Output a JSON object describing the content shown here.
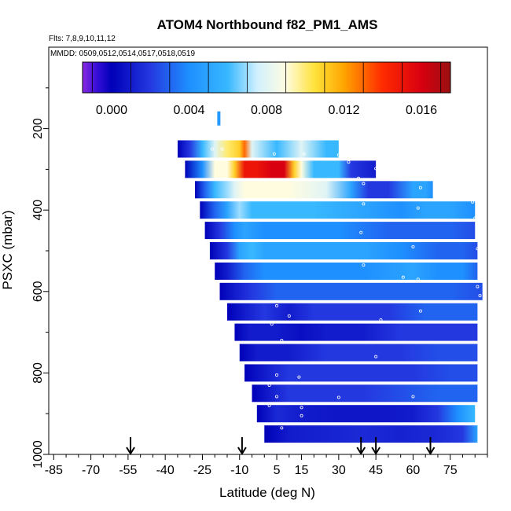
{
  "chart_data": {
    "type": "heatmap",
    "title": "ATOM4 Northbound f82_PM1_AMS",
    "subtitle_flights": "Flts: 7,8,9,10,11,12",
    "subtitle_dates": "MMDD: 0509,0512,0514,0517,0518,0519",
    "xlabel": "Latitude (deg N)",
    "ylabel": "PSXC (mbar)",
    "xlim": [
      -87,
      90
    ],
    "ylim": [
      1000,
      0
    ],
    "x_ticks": [
      -85,
      -70,
      -55,
      -40,
      -25,
      -10,
      5,
      15,
      30,
      45,
      60,
      75
    ],
    "x_tick_labels": [
      "-85",
      "-70",
      "-55",
      "-40",
      "-25",
      "-10",
      "5",
      "15",
      "30",
      "45",
      "60",
      "75"
    ],
    "y_ticks": [
      200,
      400,
      600,
      800,
      1000
    ],
    "y_tick_labels": [
      "200",
      "400",
      "600",
      "800",
      "1000"
    ],
    "colorbar": {
      "min": -0.0015,
      "max": 0.0175,
      "ticks": [
        0.0,
        0.004,
        0.008,
        0.012,
        0.016
      ],
      "tick_labels": [
        "0.000",
        "0.004",
        "0.008",
        "0.012",
        "0.016"
      ],
      "bin_step": 0.002
    },
    "arrows_latitude": [
      -54,
      -9,
      39,
      45,
      67
    ],
    "colormap_stops": [
      {
        "v": -0.0015,
        "c": "#8a2be2"
      },
      {
        "v": -0.0008,
        "c": "#3a0fd8"
      },
      {
        "v": 0.0,
        "c": "#0000b8"
      },
      {
        "v": 0.002,
        "c": "#2438e0"
      },
      {
        "v": 0.004,
        "c": "#1e90ff"
      },
      {
        "v": 0.006,
        "c": "#38b8ff"
      },
      {
        "v": 0.0075,
        "c": "#d0f0ff"
      },
      {
        "v": 0.009,
        "c": "#fffce0"
      },
      {
        "v": 0.0105,
        "c": "#ffe23a"
      },
      {
        "v": 0.012,
        "c": "#ffa500"
      },
      {
        "v": 0.014,
        "c": "#ff2a00"
      },
      {
        "v": 0.016,
        "c": "#d80010"
      },
      {
        "v": 0.0175,
        "c": "#9a1010"
      }
    ],
    "layers": [
      {
        "p": 175,
        "lat_start": -19,
        "lat_end": -18,
        "values": [
          [
            -19,
            0.0045
          ]
        ]
      },
      {
        "p": 250,
        "lat_start": -35,
        "lat_end": 30,
        "values": [
          [
            -35,
            0.0
          ],
          [
            -30,
            0.002
          ],
          [
            -25,
            0.006
          ],
          [
            -20,
            0.008
          ],
          [
            -15,
            0.01
          ],
          [
            -10,
            0.011
          ],
          [
            -8,
            0.013
          ],
          [
            -5,
            0.008
          ],
          [
            5,
            0.006
          ],
          [
            15,
            0.008
          ],
          [
            25,
            0.006
          ],
          [
            30,
            0.006
          ]
        ]
      },
      {
        "p": 300,
        "lat_start": -32,
        "lat_end": 45,
        "values": [
          [
            -32,
            0.0
          ],
          [
            -25,
            0.004
          ],
          [
            -20,
            0.009
          ],
          [
            -15,
            0.009
          ],
          [
            -12,
            0.011
          ],
          [
            -8,
            0.015
          ],
          [
            -3,
            0.015
          ],
          [
            3,
            0.016
          ],
          [
            8,
            0.016
          ],
          [
            12,
            0.011
          ],
          [
            15,
            0.009
          ],
          [
            20,
            0.006
          ],
          [
            30,
            0.006
          ],
          [
            35,
            0.002
          ],
          [
            45,
            0.001
          ]
        ]
      },
      {
        "p": 350,
        "lat_start": -28,
        "lat_end": 68,
        "values": [
          [
            -28,
            0.0
          ],
          [
            -24,
            0.003
          ],
          [
            -20,
            0.006
          ],
          [
            -15,
            0.007
          ],
          [
            -12,
            0.008
          ],
          [
            -8,
            0.009
          ],
          [
            0,
            0.009
          ],
          [
            10,
            0.009
          ],
          [
            25,
            0.008
          ],
          [
            35,
            0.005
          ],
          [
            42,
            0.002
          ],
          [
            50,
            0.002
          ],
          [
            60,
            0.005
          ],
          [
            65,
            0.005
          ],
          [
            68,
            0.004
          ]
        ]
      },
      {
        "p": 400,
        "lat_start": -26,
        "lat_end": 85,
        "values": [
          [
            -26,
            0.0
          ],
          [
            -20,
            0.003
          ],
          [
            -15,
            0.005
          ],
          [
            -10,
            0.007
          ],
          [
            -5,
            0.006
          ],
          [
            5,
            0.006
          ],
          [
            20,
            0.006
          ],
          [
            40,
            0.005
          ],
          [
            55,
            0.004
          ],
          [
            65,
            0.005
          ],
          [
            75,
            0.005
          ],
          [
            85,
            0.004
          ]
        ]
      },
      {
        "p": 450,
        "lat_start": -24,
        "lat_end": 85,
        "values": [
          [
            -24,
            0.0
          ],
          [
            -18,
            0.002
          ],
          [
            -12,
            0.004
          ],
          [
            -8,
            0.005
          ],
          [
            0,
            0.004
          ],
          [
            15,
            0.004
          ],
          [
            30,
            0.004
          ],
          [
            50,
            0.003
          ],
          [
            65,
            0.003
          ],
          [
            75,
            0.003
          ],
          [
            85,
            0.0025
          ]
        ]
      },
      {
        "p": 500,
        "lat_start": -22,
        "lat_end": 86,
        "values": [
          [
            -22,
            0.0
          ],
          [
            -15,
            0.002
          ],
          [
            -10,
            0.005
          ],
          [
            -5,
            0.006
          ],
          [
            0,
            0.005
          ],
          [
            20,
            0.005
          ],
          [
            40,
            0.005
          ],
          [
            55,
            0.004
          ],
          [
            70,
            0.003
          ],
          [
            80,
            0.003
          ],
          [
            86,
            0.0025
          ]
        ]
      },
      {
        "p": 550,
        "lat_start": -20,
        "lat_end": 86,
        "values": [
          [
            -20,
            0.0
          ],
          [
            -15,
            0.001
          ],
          [
            -8,
            0.003
          ],
          [
            0,
            0.004
          ],
          [
            20,
            0.004
          ],
          [
            40,
            0.004
          ],
          [
            60,
            0.005
          ],
          [
            70,
            0.004
          ],
          [
            80,
            0.004
          ],
          [
            86,
            0.003
          ]
        ]
      },
      {
        "p": 600,
        "lat_start": -18,
        "lat_end": 88,
        "values": [
          [
            -18,
            0.0
          ],
          [
            -12,
            0.001
          ],
          [
            -5,
            0.002
          ],
          [
            5,
            0.003
          ],
          [
            20,
            0.003
          ],
          [
            40,
            0.003
          ],
          [
            60,
            0.003
          ],
          [
            75,
            0.003
          ],
          [
            88,
            0.0025
          ]
        ]
      },
      {
        "p": 650,
        "lat_start": -15,
        "lat_end": 86,
        "values": [
          [
            -15,
            0.0
          ],
          [
            -8,
            0.001
          ],
          [
            0,
            0.002
          ],
          [
            10,
            0.001
          ],
          [
            20,
            0.002
          ],
          [
            35,
            0.002
          ],
          [
            50,
            0.002
          ],
          [
            65,
            0.003
          ],
          [
            75,
            0.003
          ],
          [
            86,
            0.003
          ]
        ]
      },
      {
        "p": 700,
        "lat_start": -12,
        "lat_end": 86,
        "values": [
          [
            -12,
            0.0
          ],
          [
            -6,
            0.001
          ],
          [
            5,
            0.001
          ],
          [
            15,
            0.0005
          ],
          [
            25,
            0.001
          ],
          [
            40,
            0.001
          ],
          [
            55,
            0.002
          ],
          [
            70,
            0.002
          ],
          [
            86,
            0.002
          ]
        ]
      },
      {
        "p": 750,
        "lat_start": -10,
        "lat_end": 86,
        "values": [
          [
            -10,
            0.0
          ],
          [
            -3,
            0.001
          ],
          [
            10,
            0.001
          ],
          [
            25,
            0.002
          ],
          [
            40,
            0.002
          ],
          [
            55,
            0.002
          ],
          [
            70,
            0.0025
          ],
          [
            86,
            0.0025
          ]
        ]
      },
      {
        "p": 800,
        "lat_start": -8,
        "lat_end": 86,
        "values": [
          [
            -8,
            0.0
          ],
          [
            0,
            0.001
          ],
          [
            10,
            0.002
          ],
          [
            25,
            0.002
          ],
          [
            45,
            0.002
          ],
          [
            60,
            0.002
          ],
          [
            75,
            0.0025
          ],
          [
            86,
            0.0025
          ]
        ]
      },
      {
        "p": 850,
        "lat_start": -5,
        "lat_end": 86,
        "values": [
          [
            -5,
            0.0
          ],
          [
            2,
            0.001
          ],
          [
            10,
            0.002
          ],
          [
            25,
            0.002
          ],
          [
            40,
            0.002
          ],
          [
            55,
            0.0025
          ],
          [
            70,
            0.003
          ],
          [
            86,
            0.003
          ]
        ]
      },
      {
        "p": 900,
        "lat_start": -3,
        "lat_end": 85,
        "values": [
          [
            -3,
            0.0
          ],
          [
            5,
            0.0015
          ],
          [
            15,
            0.001
          ],
          [
            30,
            0.0008
          ],
          [
            45,
            0.0008
          ],
          [
            60,
            0.001
          ],
          [
            70,
            0.002
          ],
          [
            78,
            0.004
          ],
          [
            85,
            0.006
          ]
        ]
      },
      {
        "p": 950,
        "lat_start": 0,
        "lat_end": 86,
        "values": [
          [
            0,
            0.0
          ],
          [
            10,
            0.001
          ],
          [
            25,
            0.0012
          ],
          [
            40,
            0.0015
          ],
          [
            55,
            0.0012
          ],
          [
            70,
            0.0015
          ],
          [
            80,
            0.002
          ],
          [
            86,
            0.005
          ]
        ]
      }
    ],
    "sample_points": [
      [
        -21,
        250
      ],
      [
        -17,
        250
      ],
      [
        4,
        262
      ],
      [
        16,
        262
      ],
      [
        30,
        265
      ],
      [
        38,
        272
      ],
      [
        34,
        282
      ],
      [
        52,
        285
      ],
      [
        45,
        298
      ],
      [
        60,
        295
      ],
      [
        65,
        293
      ],
      [
        62,
        315
      ],
      [
        55,
        325
      ],
      [
        38,
        322
      ],
      [
        40,
        335
      ],
      [
        63,
        345
      ],
      [
        78,
        360
      ],
      [
        84,
        380
      ],
      [
        40,
        385
      ],
      [
        62,
        395
      ],
      [
        85,
        420
      ],
      [
        39,
        455
      ],
      [
        60,
        490
      ],
      [
        86,
        495
      ],
      [
        40,
        535
      ],
      [
        56,
        565
      ],
      [
        62,
        570
      ],
      [
        86,
        588
      ],
      [
        87,
        610
      ],
      [
        5,
        635
      ],
      [
        10,
        660
      ],
      [
        3,
        680
      ],
      [
        47,
        670
      ],
      [
        63,
        648
      ],
      [
        7,
        720
      ],
      [
        45,
        760
      ],
      [
        5,
        805
      ],
      [
        14,
        810
      ],
      [
        2,
        830
      ],
      [
        5,
        858
      ],
      [
        60,
        858
      ],
      [
        87,
        865
      ],
      [
        2,
        880
      ],
      [
        15,
        885
      ],
      [
        30,
        860
      ],
      [
        15,
        905
      ],
      [
        7,
        935
      ],
      [
        87,
        940
      ]
    ]
  }
}
